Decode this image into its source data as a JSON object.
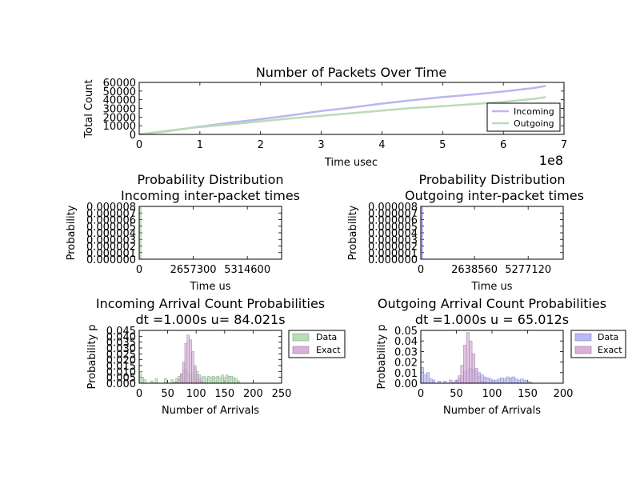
{
  "chart_data": [
    {
      "type": "line",
      "title": "Number of Packets Over Time",
      "xlabel": "Time usec",
      "ylabel": "Total Count",
      "x_multiplier_label": "1e8",
      "xlim": [
        0,
        7
      ],
      "ylim": [
        0,
        60000
      ],
      "xticks": [
        "0",
        "1",
        "2",
        "3",
        "4",
        "5",
        "6",
        "7"
      ],
      "yticks": [
        "0",
        "10000",
        "20000",
        "30000",
        "40000",
        "50000",
        "60000"
      ],
      "legend_position": "lower-right",
      "x_units_note": "x values shown in units of 1e8 usec",
      "series": [
        {
          "name": "Incoming",
          "color": "#b8b8f2",
          "x": [
            0,
            0.5,
            1,
            1.5,
            2,
            2.5,
            3,
            3.5,
            4,
            4.5,
            5,
            5.5,
            6,
            6.5,
            6.7
          ],
          "y": [
            0,
            4000,
            9000,
            13500,
            17500,
            22000,
            27000,
            31000,
            35500,
            39500,
            43000,
            46000,
            49500,
            53500,
            56000
          ]
        },
        {
          "name": "Outgoing",
          "color": "#b8dcb8",
          "x": [
            0,
            0.5,
            1,
            1.5,
            2,
            2.5,
            3,
            3.5,
            4,
            4.5,
            5,
            5.5,
            6,
            6.5,
            6.7
          ],
          "y": [
            0,
            4500,
            8500,
            11500,
            15000,
            18500,
            21500,
            24500,
            27500,
            30500,
            32500,
            35000,
            37500,
            41000,
            43000
          ]
        }
      ]
    },
    {
      "type": "bar",
      "title": "Probability Distribution",
      "subtitle": "Incoming inter-packet times",
      "xlabel": "Time us",
      "ylabel": "Probability",
      "xlim": [
        0,
        7000000
      ],
      "ylim": [
        0,
        8e-06
      ],
      "xticks": [
        "0",
        "2657300",
        "5314600"
      ],
      "yticks": [
        "0.000000",
        "0.000001",
        "0.000002",
        "0.000003",
        "0.000004",
        "0.000005",
        "0.000006",
        "0.000007",
        "0.000008"
      ],
      "color": "#7fc27f",
      "bins": [
        {
          "x": 0,
          "y": 8e-06
        }
      ]
    },
    {
      "type": "bar",
      "title": "Probability Distribution",
      "subtitle": "Outgoing inter-packet times",
      "xlabel": "Time us",
      "ylabel": "Probability",
      "xlim": [
        0,
        7000000
      ],
      "ylim": [
        0,
        8e-06
      ],
      "xticks": [
        "0",
        "2638560",
        "5277120"
      ],
      "yticks": [
        "0.000000",
        "0.000001",
        "0.000002",
        "0.000003",
        "0.000004",
        "0.000005",
        "0.000006",
        "0.000007",
        "0.000008"
      ],
      "color": "#8080ff",
      "bins": [
        {
          "x": 0,
          "y": 8e-06
        }
      ]
    },
    {
      "type": "bar",
      "title": "Incoming Arrival Count Probabilities",
      "subtitle": "dt =1.000s u= 84.021s",
      "xlabel": "Number of Arrivals",
      "ylabel": "Probability p",
      "xlim": [
        0,
        250
      ],
      "ylim": [
        0,
        0.045
      ],
      "xticks": [
        "0",
        "50",
        "100",
        "150",
        "200",
        "250"
      ],
      "yticks": [
        "0.000",
        "0.005",
        "0.010",
        "0.015",
        "0.020",
        "0.025",
        "0.030",
        "0.035",
        "0.040",
        "0.045"
      ],
      "legend_position": "outside-right",
      "bin_width": 4,
      "series": [
        {
          "name": "Data",
          "color": "#b8dcb8",
          "x": [
            0,
            4,
            8,
            20,
            28,
            44,
            56,
            64,
            68,
            72,
            76,
            80,
            84,
            88,
            92,
            96,
            100,
            104,
            108,
            112,
            116,
            120,
            124,
            128,
            132,
            136,
            140,
            144,
            148,
            152,
            156,
            160,
            164,
            168,
            172
          ],
          "y": [
            0.01,
            0.005,
            0.003,
            0.002,
            0.004,
            0.004,
            0.003,
            0.004,
            0.006,
            0.008,
            0.011,
            0.012,
            0.009,
            0.007,
            0.009,
            0.012,
            0.01,
            0.007,
            0.005,
            0.006,
            0.004,
            0.006,
            0.005,
            0.006,
            0.005,
            0.006,
            0.005,
            0.007,
            0.005,
            0.007,
            0.006,
            0.006,
            0.005,
            0.004,
            0.002
          ]
        },
        {
          "name": "Exact",
          "color": "#d8b0d8",
          "x": [
            60,
            64,
            68,
            72,
            76,
            80,
            84,
            88,
            92,
            96,
            100,
            104,
            108,
            112
          ],
          "y": [
            0.0005,
            0.001,
            0.003,
            0.008,
            0.018,
            0.034,
            0.041,
            0.037,
            0.027,
            0.015,
            0.007,
            0.003,
            0.001,
            0.0003
          ]
        }
      ]
    },
    {
      "type": "bar",
      "title": "Outgoing Arrival Count Probabilities",
      "subtitle": "dt =1.000s u = 65.012s",
      "xlabel": "Number of Arrivals",
      "ylabel": "Probability p",
      "xlim": [
        0,
        200
      ],
      "ylim": [
        0,
        0.05
      ],
      "xticks": [
        "0",
        "50",
        "100",
        "150",
        "200"
      ],
      "yticks": [
        "0.00",
        "0.01",
        "0.02",
        "0.03",
        "0.04",
        "0.05"
      ],
      "legend_position": "outside-right",
      "bin_width": 4,
      "series": [
        {
          "name": "Data",
          "color": "#b8b8f2",
          "x": [
            0,
            4,
            8,
            12,
            16,
            24,
            32,
            40,
            48,
            52,
            56,
            60,
            64,
            68,
            72,
            76,
            80,
            84,
            88,
            92,
            96,
            100,
            104,
            108,
            112,
            116,
            120,
            124,
            128,
            132,
            136,
            140,
            144,
            148,
            152
          ],
          "y": [
            0.015,
            0.008,
            0.01,
            0.004,
            0.003,
            0.002,
            0.002,
            0.003,
            0.003,
            0.004,
            0.007,
            0.011,
            0.013,
            0.014,
            0.013,
            0.012,
            0.01,
            0.008,
            0.006,
            0.005,
            0.004,
            0.003,
            0.003,
            0.004,
            0.005,
            0.004,
            0.006,
            0.005,
            0.006,
            0.004,
            0.003,
            0.004,
            0.003,
            0.002,
            0.001
          ]
        },
        {
          "name": "Exact",
          "color": "#d8b0d8",
          "x": [
            44,
            48,
            52,
            56,
            60,
            64,
            68,
            72,
            76,
            80,
            84,
            88
          ],
          "y": [
            0.0005,
            0.002,
            0.007,
            0.017,
            0.036,
            0.048,
            0.04,
            0.028,
            0.014,
            0.006,
            0.002,
            0.0005
          ]
        }
      ]
    }
  ]
}
